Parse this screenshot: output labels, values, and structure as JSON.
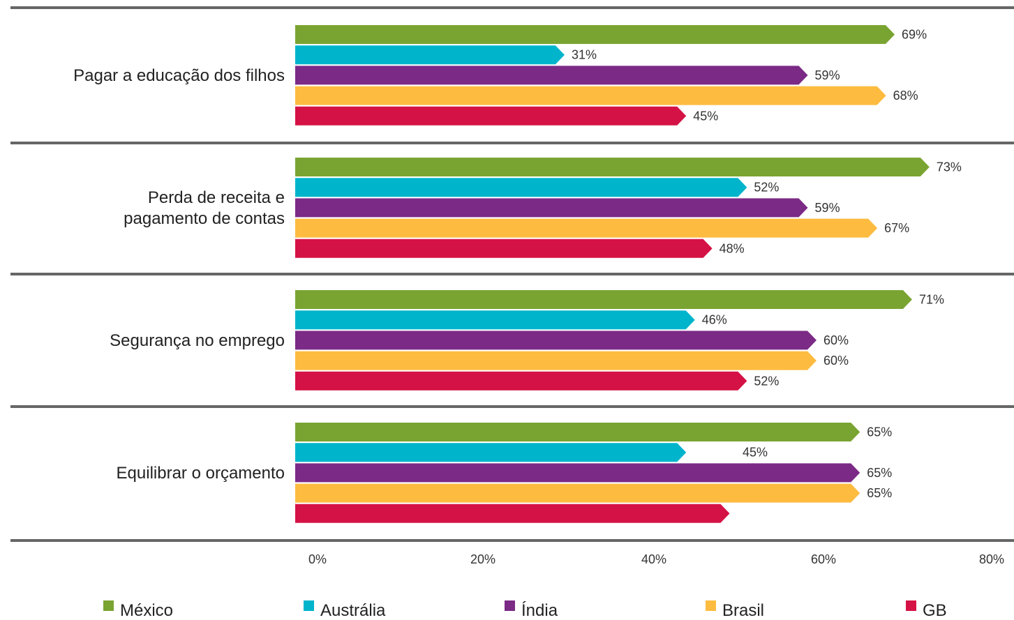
{
  "chart_data": {
    "type": "bar",
    "orientation": "horizontal",
    "categories": [
      [
        "Pagar a educação dos filhos"
      ],
      [
        "Perda de receita e",
        "pagamento de contas"
      ],
      [
        "Segurança no emprego"
      ],
      [
        "Equilibrar o orçamento"
      ]
    ],
    "series": [
      {
        "name": "México",
        "color": "#7aa431",
        "values": [
          69,
          73,
          71,
          65
        ],
        "labels": [
          "69%",
          "73%",
          "71%",
          "65%"
        ]
      },
      {
        "name": "Austrália",
        "color": "#00b4cc",
        "values": [
          31,
          52,
          46,
          45
        ],
        "labels": [
          "31%",
          "52%",
          "46%",
          "45%"
        ]
      },
      {
        "name": "Índia",
        "color": "#7b2a86",
        "values": [
          59,
          59,
          60,
          65
        ],
        "labels": [
          "59%",
          "59%",
          "60%",
          "65%"
        ]
      },
      {
        "name": "Brasil",
        "color": "#fdbb40",
        "values": [
          68,
          67,
          60,
          65
        ],
        "labels": [
          "68%",
          "67%",
          "60%",
          "65%"
        ]
      },
      {
        "name": "GB",
        "color": "#d51245",
        "values": [
          45,
          48,
          52,
          50
        ],
        "labels": [
          "45%",
          "48%",
          "52%",
          ""
        ]
      }
    ],
    "xticks": [
      "0%",
      "20%",
      "40%",
      "60%",
      "80%"
    ],
    "xlim": [
      0,
      80
    ],
    "grid": false,
    "legend_position": "bottom",
    "separator_color": "#666666",
    "title": "",
    "xlabel": "",
    "ylabel": ""
  }
}
